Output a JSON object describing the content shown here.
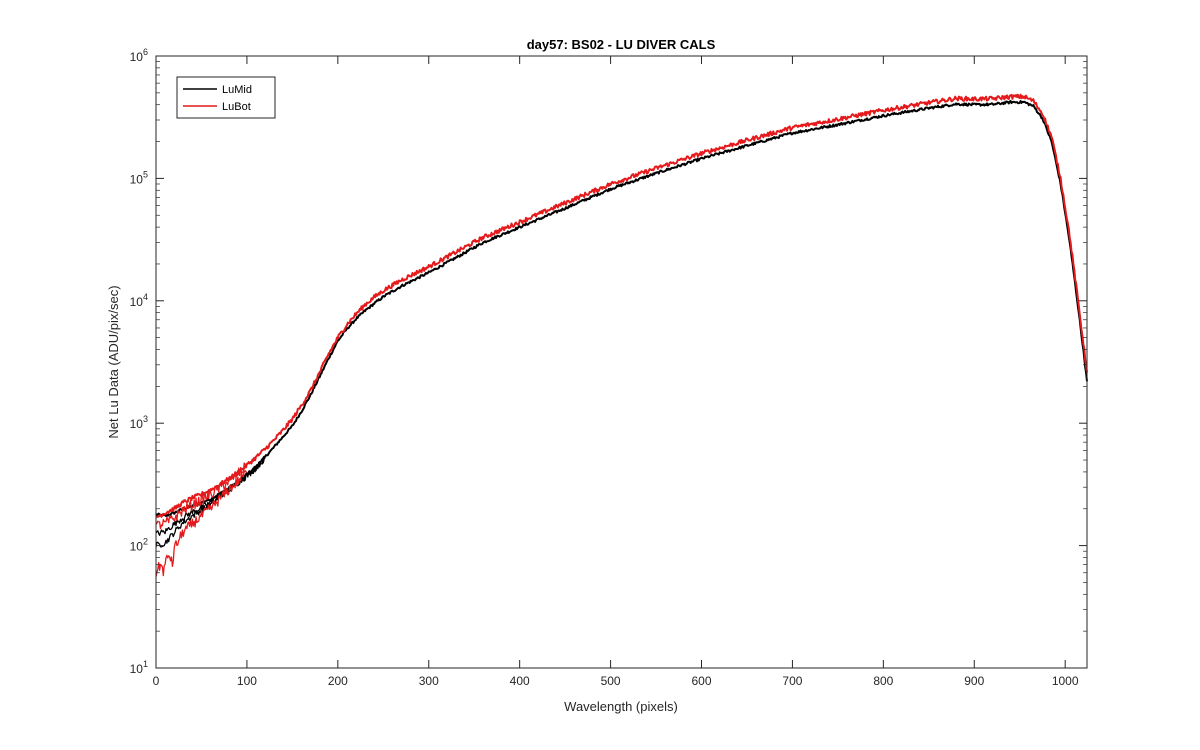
{
  "chart_data": {
    "type": "line",
    "title": "day57: BS02 - LU DIVER CALS",
    "xlabel": "Wavelength (pixels)",
    "ylabel": "Net Lu Data (ADU/pix/sec)",
    "xlim": [
      0,
      1024
    ],
    "ylim": [
      10,
      1000000
    ],
    "yscale": "log",
    "grid": false,
    "legend_position": "top-left",
    "x_ticks": [
      0,
      100,
      200,
      300,
      400,
      500,
      600,
      700,
      800,
      900,
      1000
    ],
    "y_ticks": [
      {
        "value": 10,
        "base": "10",
        "exp": "1"
      },
      {
        "value": 100,
        "base": "10",
        "exp": "2"
      },
      {
        "value": 1000,
        "base": "10",
        "exp": "3"
      },
      {
        "value": 10000,
        "base": "10",
        "exp": "4"
      },
      {
        "value": 100000,
        "base": "10",
        "exp": "5"
      },
      {
        "value": 1000000,
        "base": "10",
        "exp": "6"
      }
    ],
    "series": [
      {
        "name": "LuMid",
        "color": "#000000",
        "noise": 0.02,
        "lines": [
          [
            [
              0,
              180
            ],
            [
              10,
              175
            ],
            [
              20,
              185
            ],
            [
              30,
              200
            ],
            [
              40,
              210
            ],
            [
              50,
              225
            ],
            [
              60,
              240
            ],
            [
              70,
              265
            ],
            [
              80,
              295
            ],
            [
              90,
              330
            ],
            [
              100,
              380
            ],
            [
              110,
              440
            ],
            [
              120,
              530
            ],
            [
              130,
              640
            ],
            [
              140,
              780
            ],
            [
              150,
              950
            ],
            [
              160,
              1250
            ],
            [
              170,
              1700
            ],
            [
              180,
              2400
            ],
            [
              190,
              3400
            ],
            [
              200,
              4700
            ],
            [
              210,
              5900
            ],
            [
              220,
              7100
            ],
            [
              230,
              8300
            ],
            [
              240,
              9500
            ],
            [
              250,
              10800
            ],
            [
              270,
              13200
            ],
            [
              300,
              17000
            ],
            [
              330,
              22500
            ],
            [
              360,
              30000
            ],
            [
              400,
              40000
            ],
            [
              450,
              57000
            ],
            [
              500,
              82000
            ],
            [
              550,
              110000
            ],
            [
              600,
              145000
            ],
            [
              650,
              185000
            ],
            [
              700,
              235000
            ],
            [
              750,
              275000
            ],
            [
              800,
              325000
            ],
            [
              850,
              375000
            ],
            [
              880,
              405000
            ],
            [
              900,
              400000
            ],
            [
              920,
              402000
            ],
            [
              940,
              420000
            ],
            [
              955,
              420000
            ],
            [
              965,
              390000
            ],
            [
              975,
              310000
            ],
            [
              985,
              200000
            ],
            [
              995,
              90000
            ],
            [
              1005,
              30000
            ],
            [
              1015,
              8000
            ],
            [
              1024,
              2200
            ]
          ],
          [
            [
              0,
              125
            ],
            [
              10,
              130
            ],
            [
              20,
              150
            ],
            [
              30,
              170
            ],
            [
              40,
              188
            ],
            [
              50,
              205
            ],
            [
              60,
              225
            ],
            [
              70,
              255
            ],
            [
              80,
              290
            ],
            [
              90,
              330
            ],
            [
              100,
              375
            ],
            [
              110,
              430
            ],
            [
              120,
              520
            ]
          ],
          [
            [
              0,
              100
            ],
            [
              10,
              105
            ],
            [
              20,
              128
            ],
            [
              30,
              155
            ],
            [
              40,
              175
            ],
            [
              50,
              195
            ],
            [
              60,
              215
            ],
            [
              70,
              248
            ],
            [
              80,
              285
            ],
            [
              90,
              325
            ],
            [
              100,
              370
            ],
            [
              110,
              430
            ],
            [
              120,
              520
            ]
          ]
        ]
      },
      {
        "name": "LuBot",
        "color": "#e41a1c",
        "noise": 0.035,
        "lines": [
          [
            [
              0,
              170
            ],
            [
              10,
              185
            ],
            [
              20,
              200
            ],
            [
              30,
              225
            ],
            [
              40,
              245
            ],
            [
              50,
              262
            ],
            [
              60,
              285
            ],
            [
              70,
              315
            ],
            [
              80,
              350
            ],
            [
              90,
              395
            ],
            [
              100,
              455
            ],
            [
              110,
              525
            ],
            [
              120,
              615
            ],
            [
              130,
              730
            ],
            [
              140,
              880
            ],
            [
              150,
              1080
            ],
            [
              160,
              1400
            ],
            [
              170,
              1850
            ],
            [
              180,
              2600
            ],
            [
              190,
              3700
            ],
            [
              200,
              5000
            ],
            [
              210,
              6400
            ],
            [
              220,
              7800
            ],
            [
              230,
              9300
            ],
            [
              240,
              10700
            ],
            [
              250,
              12100
            ],
            [
              270,
              14800
            ],
            [
              300,
              19000
            ],
            [
              330,
              25000
            ],
            [
              360,
              33000
            ],
            [
              400,
              44000
            ],
            [
              450,
              63000
            ],
            [
              500,
              90000
            ],
            [
              550,
              121000
            ],
            [
              600,
              160000
            ],
            [
              650,
              205000
            ],
            [
              700,
              260000
            ],
            [
              750,
              305000
            ],
            [
              800,
              360000
            ],
            [
              850,
              415000
            ],
            [
              880,
              450000
            ],
            [
              900,
              445000
            ],
            [
              920,
              448000
            ],
            [
              940,
              465000
            ],
            [
              955,
              465000
            ],
            [
              965,
              430000
            ],
            [
              975,
              340000
            ],
            [
              985,
              220000
            ],
            [
              995,
              100000
            ],
            [
              1005,
              34000
            ],
            [
              1015,
              9000
            ],
            [
              1024,
              2600
            ]
          ],
          [
            [
              0,
              145
            ],
            [
              10,
              152
            ],
            [
              20,
              168
            ],
            [
              30,
              195
            ],
            [
              40,
              215
            ],
            [
              50,
              235
            ],
            [
              60,
              262
            ],
            [
              70,
              295
            ],
            [
              80,
              335
            ],
            [
              90,
              385
            ],
            [
              100,
              450
            ]
          ],
          [
            [
              0,
              60
            ],
            [
              5,
              70
            ],
            [
              8,
              62
            ],
            [
              12,
              78
            ],
            [
              15,
              85
            ],
            [
              18,
              68
            ],
            [
              20,
              95
            ],
            [
              25,
              110
            ],
            [
              30,
              130
            ],
            [
              35,
              140
            ],
            [
              40,
              150
            ],
            [
              50,
              175
            ],
            [
              60,
              200
            ],
            [
              70,
              240
            ],
            [
              80,
              285
            ],
            [
              90,
              335
            ],
            [
              100,
              400
            ]
          ]
        ]
      }
    ]
  }
}
